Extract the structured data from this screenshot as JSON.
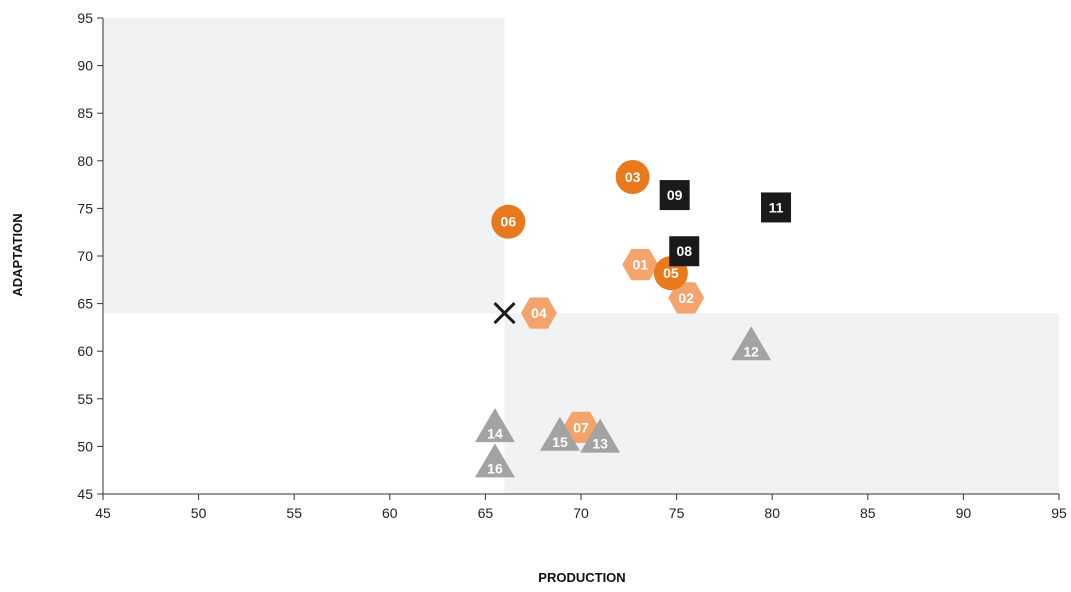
{
  "chart_data": {
    "type": "scatter",
    "title": "",
    "xlabel": "PRODUCTION",
    "ylabel": "ADAPTATION",
    "xlim": [
      45,
      95
    ],
    "ylim": [
      45,
      95
    ],
    "x_ticks": [
      45,
      50,
      55,
      60,
      65,
      70,
      75,
      80,
      85,
      90,
      95
    ],
    "y_ticks": [
      45,
      50,
      55,
      60,
      65,
      70,
      75,
      80,
      85,
      90,
      95
    ],
    "grid": false,
    "divider_point": {
      "x": 66,
      "y": 64,
      "marker": "x"
    },
    "shaded_regions": [
      {
        "x_range": [
          45,
          66
        ],
        "y_range": [
          64,
          95
        ]
      },
      {
        "x_range": [
          66,
          95
        ],
        "y_range": [
          45,
          64
        ]
      }
    ],
    "colors": {
      "dark_orange": "#e8791d",
      "light_orange": "#f2a46c",
      "black": "#1a1a1a",
      "gray": "#a3a3a3",
      "shade": "#f1f2f4"
    },
    "points": [
      {
        "label": "01",
        "x": 73.1,
        "y": 69.1,
        "shape": "hexagon",
        "color": "light_orange"
      },
      {
        "label": "02",
        "x": 75.5,
        "y": 65.6,
        "shape": "hexagon",
        "color": "light_orange"
      },
      {
        "label": "03",
        "x": 72.7,
        "y": 78.3,
        "shape": "circle",
        "color": "dark_orange"
      },
      {
        "label": "04",
        "x": 67.8,
        "y": 64.0,
        "shape": "hexagon",
        "color": "light_orange"
      },
      {
        "label": "05",
        "x": 74.7,
        "y": 68.2,
        "shape": "circle",
        "color": "dark_orange"
      },
      {
        "label": "06",
        "x": 66.2,
        "y": 73.6,
        "shape": "circle",
        "color": "dark_orange"
      },
      {
        "label": "07",
        "x": 70.0,
        "y": 52.0,
        "shape": "hexagon",
        "color": "light_orange"
      },
      {
        "label": "08",
        "x": 75.4,
        "y": 70.5,
        "shape": "square",
        "color": "black"
      },
      {
        "label": "09",
        "x": 74.9,
        "y": 76.4,
        "shape": "square",
        "color": "black"
      },
      {
        "label": "11",
        "x": 80.2,
        "y": 75.1,
        "shape": "square",
        "color": "black"
      },
      {
        "label": "12",
        "x": 78.9,
        "y": 60.4,
        "shape": "triangle",
        "color": "gray"
      },
      {
        "label": "13",
        "x": 71.0,
        "y": 50.7,
        "shape": "triangle",
        "color": "gray"
      },
      {
        "label": "14",
        "x": 65.5,
        "y": 51.8,
        "shape": "triangle",
        "color": "gray"
      },
      {
        "label": "15",
        "x": 68.9,
        "y": 50.9,
        "shape": "triangle",
        "color": "gray"
      },
      {
        "label": "16",
        "x": 65.5,
        "y": 48.1,
        "shape": "triangle",
        "color": "gray"
      }
    ]
  }
}
